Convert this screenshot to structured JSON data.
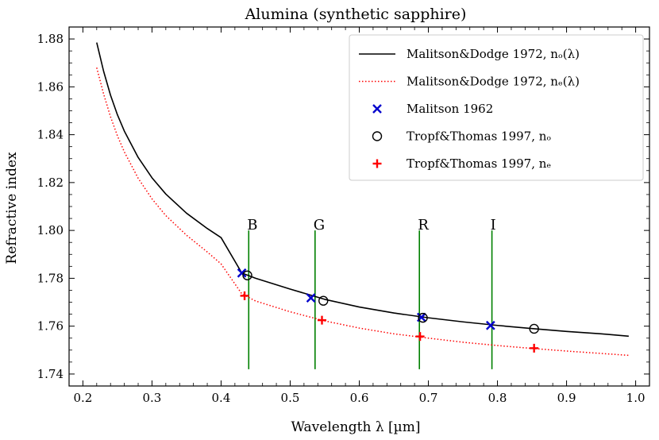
{
  "chart_data": {
    "type": "line",
    "title": "Alumina (synthetic sapphire)",
    "xlabel": "Wavelength λ [µm]",
    "ylabel": "Refractive index",
    "xlim": [
      0.18,
      1.02
    ],
    "ylim": [
      1.735,
      1.885
    ],
    "xticks": [
      0.2,
      0.3,
      0.4,
      0.5,
      0.6,
      0.7,
      0.8,
      0.9,
      1.0
    ],
    "xtick_labels": [
      "0.2",
      "0.3",
      "0.4",
      "0.5",
      "0.6",
      "0.7",
      "0.8",
      "0.9",
      "1.0"
    ],
    "yticks": [
      1.74,
      1.76,
      1.78,
      1.8,
      1.82,
      1.84,
      1.86,
      1.88
    ],
    "ytick_labels": [
      "1.74",
      "1.76",
      "1.78",
      "1.80",
      "1.82",
      "1.84",
      "1.86",
      "1.88"
    ],
    "grid": false,
    "legend_position": "top-right",
    "legend": [
      {
        "text": "Malitson&Dodge 1972, nₒ(λ)",
        "series": "md_o"
      },
      {
        "text": "Malitson&Dodge 1972, nₑ(λ)",
        "series": "md_e"
      },
      {
        "text": "Malitson 1962",
        "series": "m1962"
      },
      {
        "text": "Tropf&Thomas 1997, nₒ",
        "series": "tt_o"
      },
      {
        "text": "Tropf&Thomas 1997, nₑ",
        "series": "tt_e"
      }
    ],
    "series": [
      {
        "id": "md_o",
        "name": "Malitson&Dodge 1972, nₒ(λ)",
        "style": "solid-line",
        "color": "#000000",
        "x": [
          0.22,
          0.23,
          0.24,
          0.25,
          0.26,
          0.28,
          0.3,
          0.32,
          0.35,
          0.38,
          0.4,
          0.43,
          0.45,
          0.5,
          0.55,
          0.6,
          0.65,
          0.7,
          0.75,
          0.8,
          0.85,
          0.9,
          0.95,
          0.99
        ],
        "y": [
          1.8785,
          1.8665,
          1.8565,
          1.8483,
          1.8415,
          1.8305,
          1.822,
          1.8152,
          1.8072,
          1.8008,
          1.797,
          1.7822,
          1.78,
          1.7755,
          1.7712,
          1.768,
          1.7655,
          1.7635,
          1.7618,
          1.7603,
          1.759,
          1.7578,
          1.7568,
          1.7558
        ]
      },
      {
        "id": "md_e",
        "name": "Malitson&Dodge 1972, nₑ(λ)",
        "style": "dotted-line",
        "color": "#ff0000",
        "x": [
          0.22,
          0.23,
          0.24,
          0.25,
          0.26,
          0.28,
          0.3,
          0.32,
          0.35,
          0.38,
          0.4,
          0.43,
          0.45,
          0.5,
          0.55,
          0.6,
          0.65,
          0.7,
          0.75,
          0.8,
          0.85,
          0.9,
          0.95,
          0.99
        ],
        "y": [
          1.868,
          1.857,
          1.8475,
          1.8395,
          1.8328,
          1.8218,
          1.8132,
          1.8062,
          1.798,
          1.791,
          1.786,
          1.7735,
          1.7705,
          1.766,
          1.7622,
          1.7592,
          1.7568,
          1.755,
          1.7533,
          1.7519,
          1.7507,
          1.7496,
          1.7486,
          1.7478
        ]
      },
      {
        "id": "m1962",
        "name": "Malitson 1962",
        "style": "x-marker",
        "color": "#0000cc",
        "x": [
          0.43,
          0.53,
          0.69,
          0.79
        ],
        "y": [
          1.7822,
          1.7718,
          1.7637,
          1.7603
        ]
      },
      {
        "id": "tt_o",
        "name": "Tropf&Thomas 1997, nₒ",
        "style": "circle-marker",
        "color": "#000000",
        "x": [
          0.438,
          0.548,
          0.692,
          0.853
        ],
        "y": [
          1.7812,
          1.7706,
          1.7635,
          1.7589
        ]
      },
      {
        "id": "tt_e",
        "name": "Tropf&Thomas 1997, nₑ",
        "style": "plus-marker",
        "color": "#ff0000",
        "x": [
          0.434,
          0.546,
          0.688,
          0.853
        ],
        "y": [
          1.7727,
          1.7625,
          1.7557,
          1.7508
        ]
      }
    ],
    "vlines": {
      "color": "#008000",
      "y_range": [
        1.742,
        1.8
      ],
      "items": [
        {
          "x": 0.44,
          "label": "B"
        },
        {
          "x": 0.536,
          "label": "G"
        },
        {
          "x": 0.687,
          "label": "R"
        },
        {
          "x": 0.792,
          "label": "I"
        }
      ]
    }
  }
}
